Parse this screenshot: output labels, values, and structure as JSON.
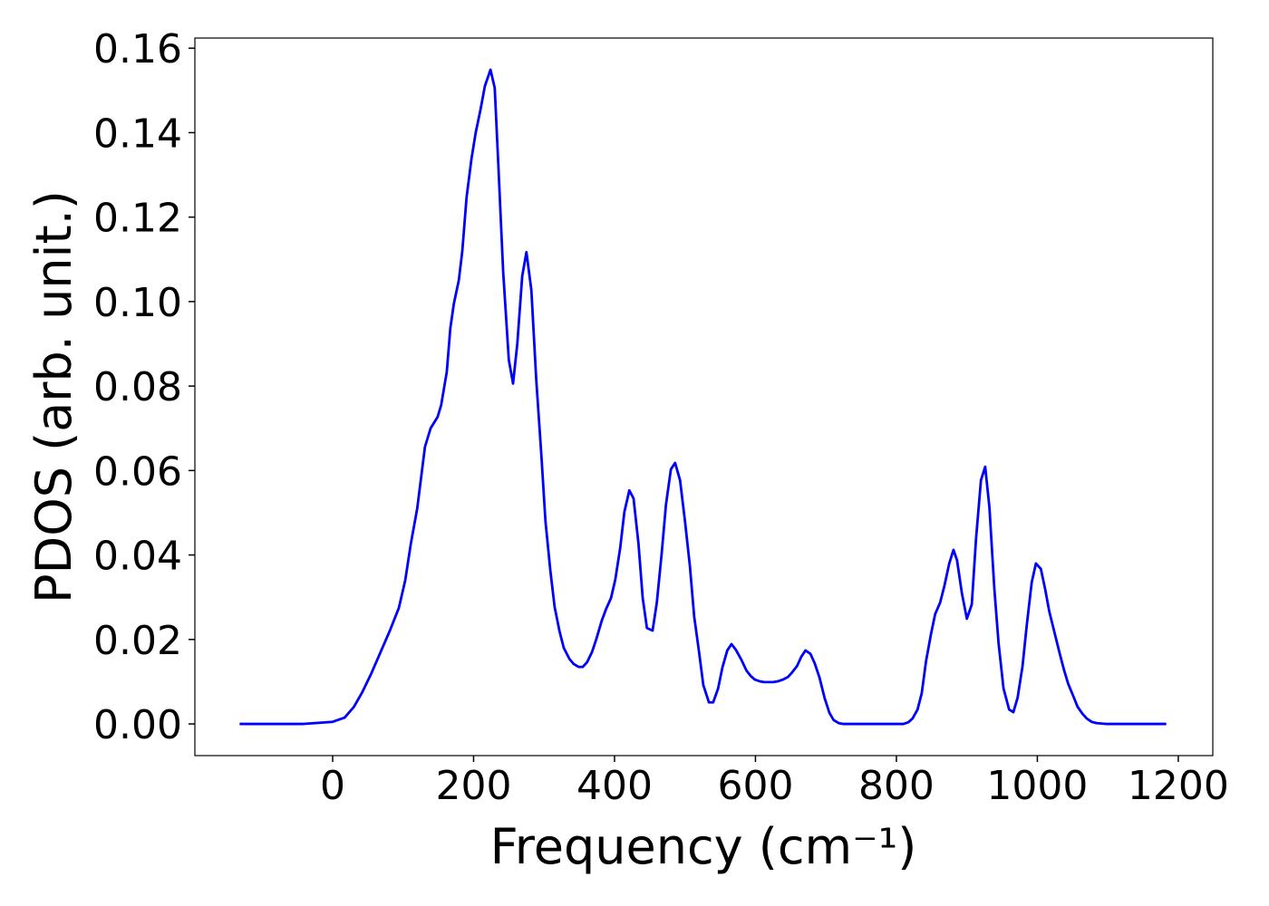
{
  "chart_data": {
    "type": "line",
    "x_label": "Frequency (cm⁻¹)",
    "y_label": "PDOS (arb. unit.)",
    "xlim": [
      -195.5,
      1249
    ],
    "ylim": [
      -0.0075,
      0.1624
    ],
    "xticks": [
      0,
      200,
      400,
      600,
      800,
      1000,
      1200
    ],
    "yticks": [
      {
        "value": 0,
        "label": "0.00"
      },
      0.02,
      0.04,
      0.06,
      0.08,
      {
        "value": 0.1,
        "label": "0.10"
      },
      0.12,
      0.14,
      0.16
    ],
    "grid": false,
    "series": [
      {
        "color": "#0000ff",
        "x": [
          -132,
          -41,
          0,
          17,
          30,
          42,
          55,
          68,
          81,
          94,
          103,
          111,
          120,
          131,
          139,
          149,
          154,
          162,
          167,
          172,
          179,
          184,
          190,
          197,
          203,
          210,
          216,
          224,
          230,
          235,
          242,
          250,
          256,
          262,
          269,
          275,
          282,
          289,
          296,
          302,
          309,
          315,
          322,
          328,
          336,
          342,
          349,
          355,
          361,
          368,
          374,
          382,
          388,
          395,
          401,
          408,
          414,
          421,
          427,
          434,
          440,
          446,
          454,
          460,
          467,
          473,
          480,
          486,
          493,
          500,
          507,
          513,
          520,
          526,
          534,
          540,
          547,
          553,
          560,
          566,
          572,
          580,
          587,
          593,
          599,
          606,
          612,
          619,
          625,
          632,
          639,
          646,
          652,
          659,
          665,
          671,
          678,
          684,
          691,
          698,
          705,
          711,
          718,
          724,
          810,
          817,
          823,
          830,
          836,
          842,
          849,
          855,
          862,
          868,
          875,
          881,
          886,
          893,
          900,
          907,
          913,
          920,
          926,
          932,
          939,
          945,
          952,
          960,
          966,
          972,
          979,
          985,
          992,
          998,
          1005,
          1011,
          1017,
          1025,
          1032,
          1038,
          1044,
          1051,
          1057,
          1064,
          1070,
          1077,
          1084,
          1097,
          1183
        ],
        "values": [
          0,
          0,
          0.0005,
          0.0015,
          0.004,
          0.0075,
          0.012,
          0.017,
          0.022,
          0.0275,
          0.034,
          0.0427,
          0.051,
          0.0656,
          0.07,
          0.0727,
          0.0755,
          0.0834,
          0.0937,
          0.0995,
          0.105,
          0.112,
          0.1246,
          0.1338,
          0.14,
          0.1456,
          0.151,
          0.1549,
          0.1506,
          0.1328,
          0.107,
          0.0862,
          0.0806,
          0.0899,
          0.106,
          0.1117,
          0.1027,
          0.0813,
          0.0641,
          0.048,
          0.0362,
          0.0277,
          0.0219,
          0.018,
          0.0154,
          0.0142,
          0.0135,
          0.0135,
          0.0146,
          0.017,
          0.02,
          0.0245,
          0.0272,
          0.0298,
          0.0341,
          0.0416,
          0.0502,
          0.0553,
          0.0534,
          0.0427,
          0.0298,
          0.0227,
          0.0221,
          0.0287,
          0.0405,
          0.0519,
          0.0603,
          0.0618,
          0.0577,
          0.048,
          0.0373,
          0.0255,
          0.017,
          0.0092,
          0.0051,
          0.0051,
          0.0084,
          0.0133,
          0.0174,
          0.0189,
          0.0176,
          0.0152,
          0.0127,
          0.0114,
          0.0105,
          0.0101,
          0.0099,
          0.0099,
          0.0099,
          0.0101,
          0.0105,
          0.0111,
          0.0122,
          0.0137,
          0.0159,
          0.0174,
          0.0166,
          0.0144,
          0.0109,
          0.0062,
          0.0026,
          0.0009,
          0.0002,
          0,
          0,
          0.0004,
          0.0013,
          0.0034,
          0.0073,
          0.0148,
          0.0212,
          0.026,
          0.0287,
          0.0326,
          0.038,
          0.0412,
          0.0388,
          0.0309,
          0.0249,
          0.0283,
          0.0438,
          0.0577,
          0.0609,
          0.0513,
          0.032,
          0.0191,
          0.0084,
          0.0034,
          0.0028,
          0.0062,
          0.0137,
          0.0234,
          0.0335,
          0.038,
          0.0367,
          0.032,
          0.0266,
          0.0212,
          0.0165,
          0.0127,
          0.0094,
          0.0066,
          0.0041,
          0.0024,
          0.0013,
          0.0005,
          0.0002,
          0,
          0
        ]
      }
    ]
  }
}
